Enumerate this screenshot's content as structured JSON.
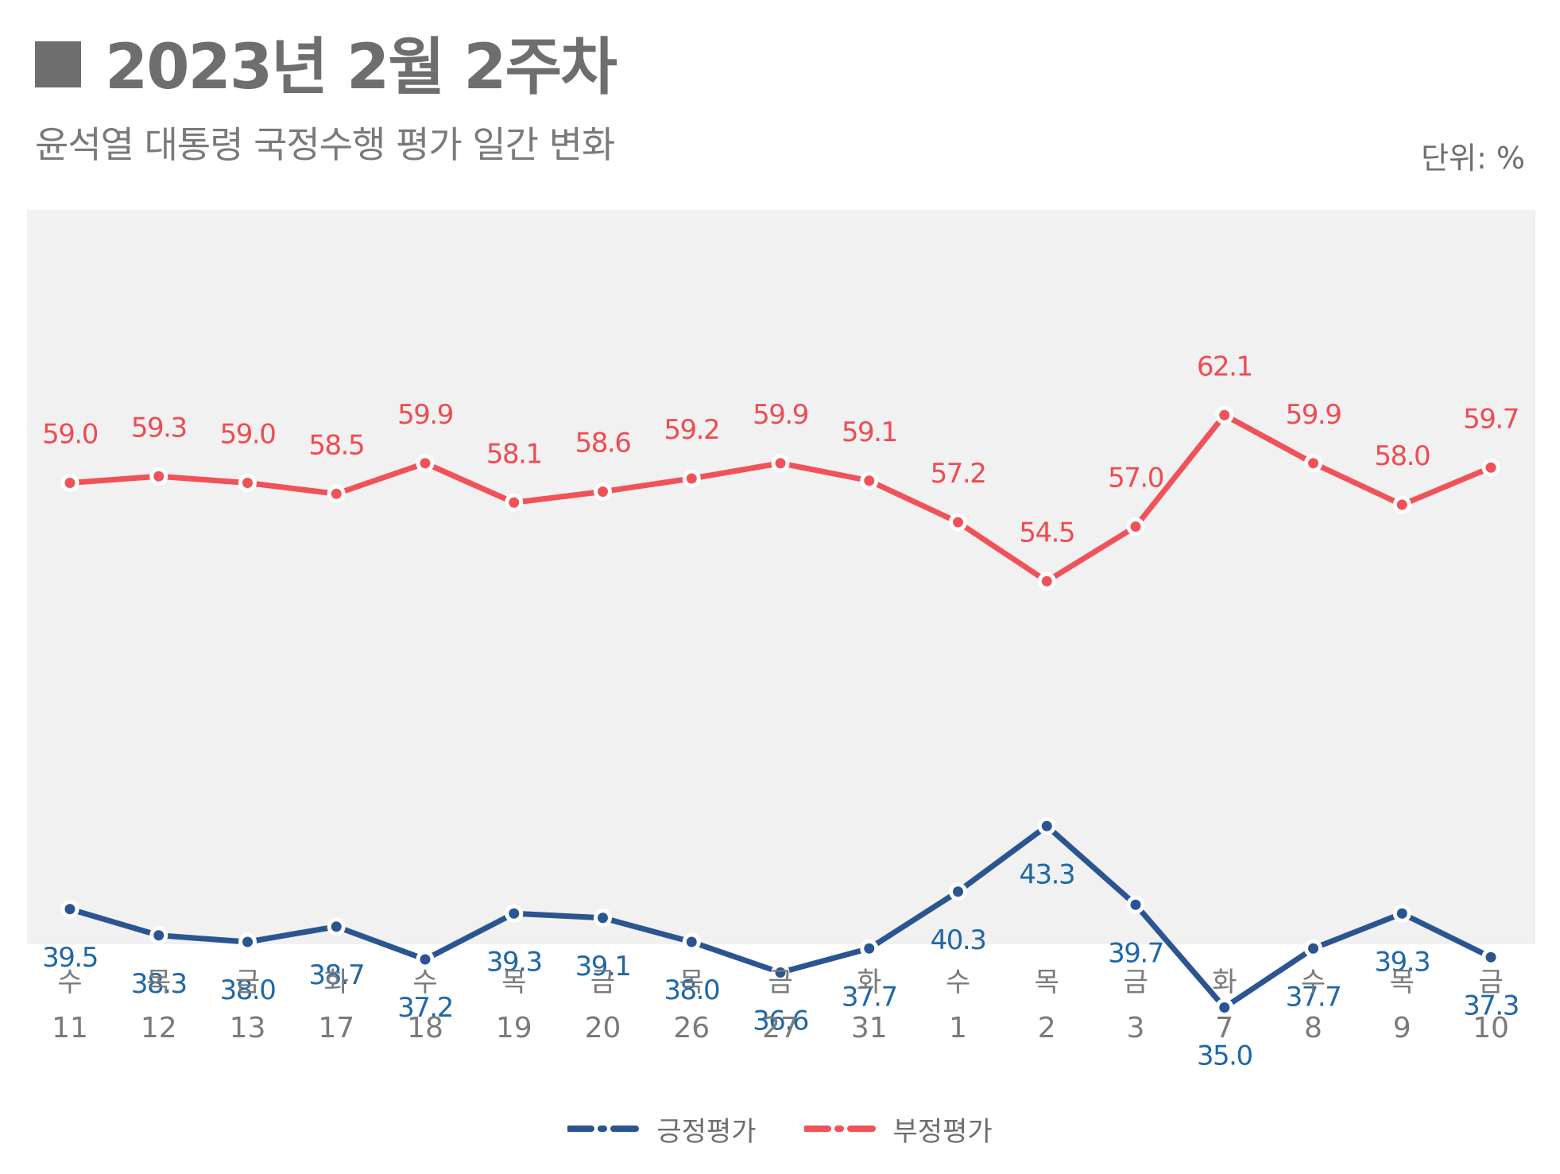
{
  "header": {
    "title": "2023년 2월 2주차",
    "subtitle": "윤석열 대통령 국정수행 평가 일간 변화",
    "unit": "단위: %"
  },
  "chart_data": {
    "type": "line",
    "title": "윤석열 대통령 국정수행 평가 일간 변화",
    "categories": [
      {
        "weekday": "수",
        "day": "11"
      },
      {
        "weekday": "목",
        "day": "12"
      },
      {
        "weekday": "금",
        "day": "13"
      },
      {
        "weekday": "화",
        "day": "17"
      },
      {
        "weekday": "수",
        "day": "18"
      },
      {
        "weekday": "목",
        "day": "19"
      },
      {
        "weekday": "금",
        "day": "20"
      },
      {
        "weekday": "목",
        "day": "26"
      },
      {
        "weekday": "금",
        "day": "27"
      },
      {
        "weekday": "화",
        "day": "31"
      },
      {
        "weekday": "수",
        "day": "1"
      },
      {
        "weekday": "목",
        "day": "2"
      },
      {
        "weekday": "금",
        "day": "3"
      },
      {
        "weekday": "화",
        "day": "7"
      },
      {
        "weekday": "수",
        "day": "8"
      },
      {
        "weekday": "목",
        "day": "9"
      },
      {
        "weekday": "금",
        "day": "10"
      }
    ],
    "series": [
      {
        "name": "긍정평가",
        "color": "#2b5591",
        "label_color": "#1f67a8",
        "label_position": "below",
        "values": [
          39.5,
          38.3,
          38.0,
          38.7,
          37.2,
          39.3,
          39.1,
          38.0,
          36.6,
          37.7,
          40.3,
          43.3,
          39.7,
          35.0,
          37.7,
          39.3,
          37.3
        ],
        "labels": [
          "39.5",
          "38.3",
          "38.0",
          "38.7",
          "37.2",
          "39.3",
          "39.1",
          "38.0",
          "36.6",
          "37.7",
          "40.3",
          "43.3",
          "39.7",
          "35.0",
          "37.7",
          "39.3",
          "37.3"
        ]
      },
      {
        "name": "부정평가",
        "color": "#f0525a",
        "label_color": "#ef4b52",
        "label_position": "above",
        "values": [
          59.0,
          59.3,
          59.0,
          58.5,
          59.9,
          58.1,
          58.6,
          59.2,
          59.9,
          59.1,
          57.2,
          54.5,
          57.0,
          62.1,
          59.9,
          58.0,
          59.7
        ],
        "labels": [
          "59.0",
          "59.3",
          "59.0",
          "58.5",
          "59.9",
          "58.1",
          "58.6",
          "59.2",
          "59.9",
          "59.1",
          "57.2",
          "54.5",
          "57.0",
          "62.1",
          "59.9",
          "58.0",
          "59.7"
        ]
      }
    ],
    "xlabel": "",
    "ylabel": "",
    "ylim": [
      20,
      80
    ],
    "grid": false,
    "legend": "bottom-center",
    "plot_background": "#f1f1f1"
  }
}
